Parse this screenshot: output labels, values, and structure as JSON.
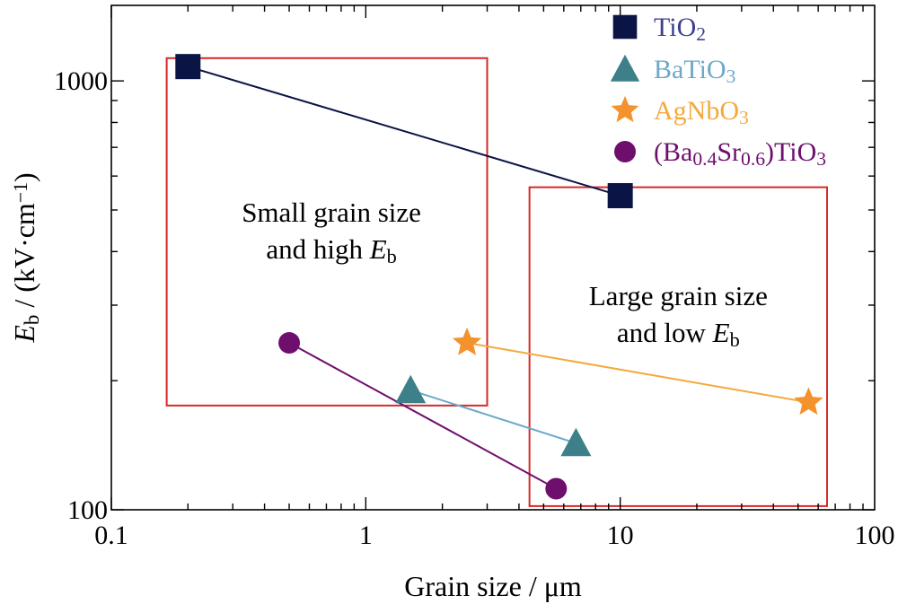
{
  "chart_data": {
    "type": "scatter",
    "xscale": "log",
    "yscale": "log",
    "xlim": [
      0.1,
      100
    ],
    "ylim": [
      100,
      1500
    ],
    "xlabel": {
      "main": "Grain size / μm"
    },
    "ylabel": {
      "main": "E",
      "sub": "b",
      "rest": " / (kV·cm",
      "sup": "−1",
      "end": ")"
    },
    "x_ticks": [
      {
        "value": 0.1,
        "label": "0.1"
      },
      {
        "value": 1,
        "label": "1"
      },
      {
        "value": 10,
        "label": "10"
      },
      {
        "value": 100,
        "label": "100"
      }
    ],
    "y_ticks": [
      {
        "value": 100,
        "label": "100"
      },
      {
        "value": 1000,
        "label": "1000"
      }
    ],
    "legend_position": "top-right",
    "series": [
      {
        "name_parts": [
          {
            "t": "TiO"
          },
          {
            "t": "2",
            "sub": true
          }
        ],
        "marker": "square",
        "marker_color": "#0a1445",
        "line_color": "#0a1445",
        "text_color": "#3d3f8f",
        "points": [
          {
            "x": 0.2,
            "y": 1080
          },
          {
            "x": 10,
            "y": 540
          }
        ]
      },
      {
        "name_parts": [
          {
            "t": "BaTiO"
          },
          {
            "t": "3",
            "sub": true
          }
        ],
        "marker": "triangle",
        "marker_color": "#3d8089",
        "line_color": "#6ca9c9",
        "text_color": "#6ca9c9",
        "points": [
          {
            "x": 1.5,
            "y": 190
          },
          {
            "x": 6.7,
            "y": 143
          }
        ]
      },
      {
        "name_parts": [
          {
            "t": "AgNbO"
          },
          {
            "t": "3",
            "sub": true
          }
        ],
        "marker": "star",
        "marker_color": "#f4922e",
        "line_color": "#f4a93c",
        "text_color": "#f4a93c",
        "points": [
          {
            "x": 2.5,
            "y": 245
          },
          {
            "x": 55,
            "y": 178
          }
        ]
      },
      {
        "name_parts": [
          {
            "t": "(Ba"
          },
          {
            "t": "0.4",
            "sub": true
          },
          {
            "t": "Sr"
          },
          {
            "t": "0.6",
            "sub": true
          },
          {
            "t": ")TiO"
          },
          {
            "t": "3",
            "sub": true
          }
        ],
        "marker": "circle",
        "marker_color": "#6e0f6e",
        "line_color": "#6e0f6e",
        "text_color": "#6e0f6e",
        "points": [
          {
            "x": 0.5,
            "y": 245
          },
          {
            "x": 5.6,
            "y": 112
          }
        ]
      }
    ],
    "regions": [
      {
        "x_range": [
          0.165,
          3.0
        ],
        "y_range": [
          175,
          1130
        ],
        "label_lines": [
          [
            {
              "t": "Small grain size"
            }
          ],
          [
            {
              "t": "and high "
            },
            {
              "t": "E",
              "italic": true
            },
            {
              "t": "b",
              "sub": true
            }
          ]
        ],
        "label_anchor": {
          "x": 0.7,
          "y": 470
        }
      },
      {
        "x_range": [
          4.4,
          65
        ],
        "y_range": [
          102,
          565
        ],
        "label_lines": [
          [
            {
              "t": "Large grain size"
            }
          ],
          [
            {
              "t": "and low "
            },
            {
              "t": "E",
              "italic": true
            },
            {
              "t": "b",
              "sub": true
            }
          ]
        ],
        "label_anchor": {
          "x": 18,
          "y": 300
        }
      }
    ],
    "region_color": "#d42a2a"
  }
}
